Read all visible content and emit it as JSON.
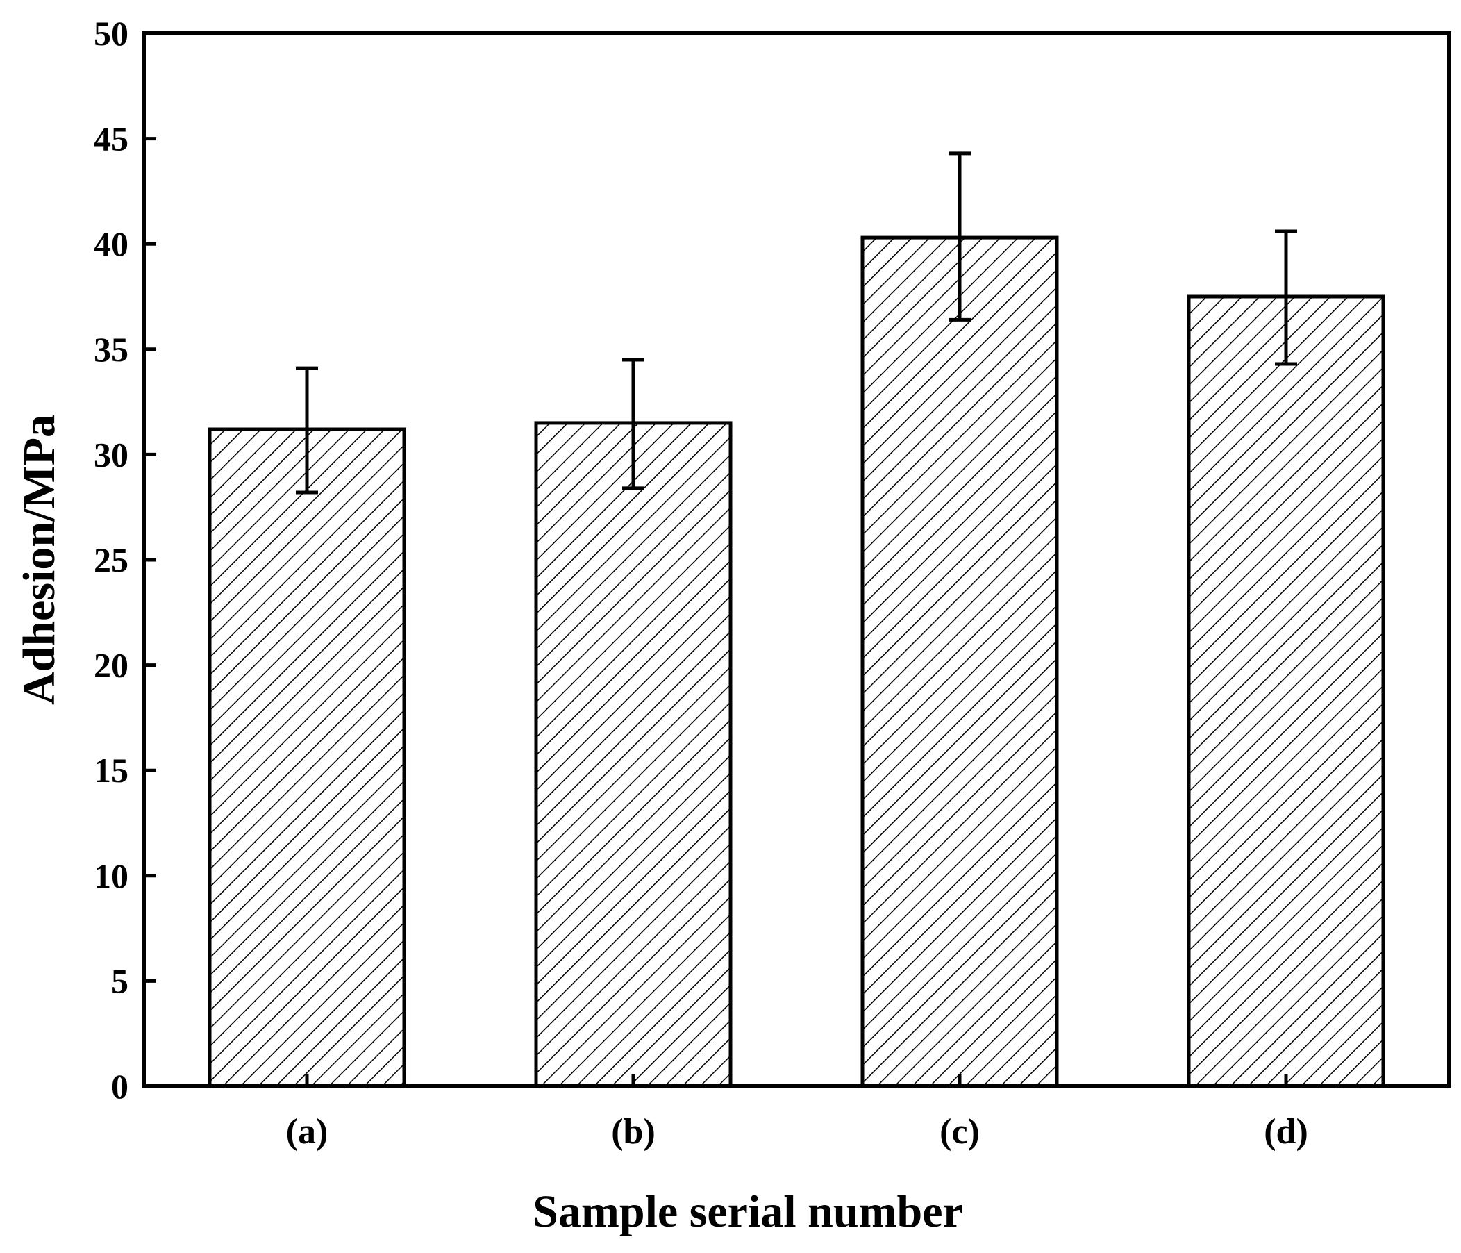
{
  "chart_data": {
    "type": "bar",
    "title": "",
    "xlabel": "Sample serial number",
    "ylabel": "Adhesion/MPa",
    "categories": [
      "(a)",
      "(b)",
      "(c)",
      "(d)"
    ],
    "values": [
      31.2,
      31.5,
      40.3,
      37.5
    ],
    "error_bars": [
      {
        "low": 28.2,
        "high": 34.1
      },
      {
        "low": 28.4,
        "high": 34.5
      },
      {
        "low": 36.4,
        "high": 44.3
      },
      {
        "low": 34.3,
        "high": 40.6
      }
    ],
    "ylim": [
      0,
      50
    ],
    "yticks": [
      "0",
      "5",
      "10",
      "15",
      "20",
      "25",
      "30",
      "35",
      "40",
      "45",
      "50"
    ],
    "grid": false,
    "legend": "none",
    "bar_fill": "hatched diagonal",
    "colors": {
      "bar_edge": "#000000",
      "hatch": "#000000",
      "background": "#ffffff"
    }
  }
}
